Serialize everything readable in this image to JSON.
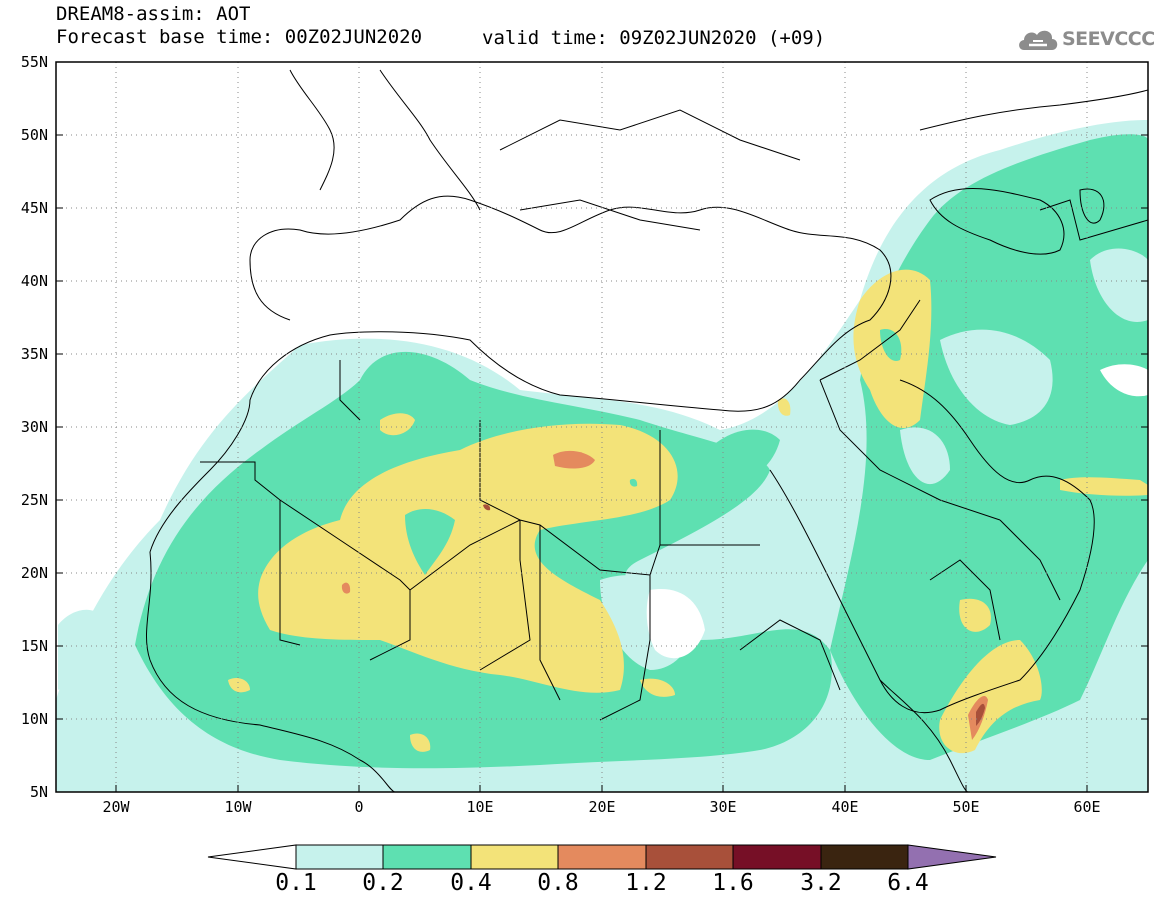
{
  "header": {
    "title": "DREAM8-assim: AOT",
    "base_time": "Forecast base time: 00Z02JUN2020",
    "valid_time": "valid time: 09Z02JUN2020 (+09)"
  },
  "logo": {
    "text": "SEEVCCC",
    "icon": "cloud-icon"
  },
  "map": {
    "latitude_labels": [
      "55N",
      "50N",
      "45N",
      "40N",
      "35N",
      "30N",
      "25N",
      "20N",
      "15N",
      "10N",
      "5N"
    ],
    "longitude_labels": [
      "20W",
      "10W",
      "0",
      "10E",
      "20E",
      "30E",
      "40E",
      "50E",
      "60E"
    ],
    "lat_range": [
      5,
      55
    ],
    "lon_range": [
      -25,
      65
    ],
    "gridlines": "dotted"
  },
  "colorbar": {
    "labels": [
      "0.1",
      "0.2",
      "0.4",
      "0.8",
      "1.2",
      "1.6",
      "3.2",
      "6.4"
    ],
    "colors": [
      "#c6f2ec",
      "#5ee0b1",
      "#f3e379",
      "#e48a5e",
      "#a8503a",
      "#760f26",
      "#3a2410",
      "#9370b0"
    ]
  },
  "palette": {
    "aot_01_02": "#c6f2ec",
    "aot_02_04": "#5ee0b1",
    "aot_04_08": "#f3e379",
    "aot_08_12": "#e48a5e",
    "aot_12_16": "#a8503a"
  }
}
